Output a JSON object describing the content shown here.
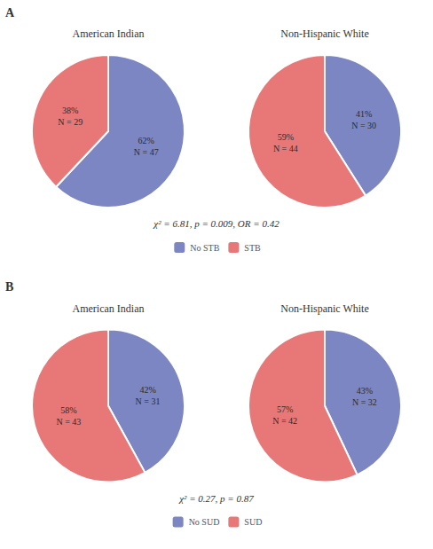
{
  "chart_data": [
    {
      "type": "pie",
      "title": "A",
      "annotations": [
        "χ² = 6.81, p = 0.009, OR = 0.42"
      ],
      "categories": [
        "No STB",
        "STB"
      ],
      "legend": "bottom",
      "data_labels": true,
      "series": [
        {
          "name": "American Indian",
          "values": [
            62,
            38
          ],
          "value_labels": [
            "62%\nN = 47",
            "38%\nN = 29"
          ],
          "colors": [
            "#7B86C2",
            "#E87878"
          ]
        },
        {
          "name": "Non-Hispanic White",
          "values": [
            41,
            59
          ],
          "value_labels": [
            "41%\nN = 30",
            "59%\nN = 44"
          ],
          "colors": [
            "#7B86C2",
            "#E87878"
          ]
        }
      ]
    },
    {
      "type": "pie",
      "title": "B",
      "annotations": [
        "χ² = 0.27, p = 0.87"
      ],
      "categories": [
        "No SUD",
        "SUD"
      ],
      "legend": "bottom",
      "data_labels": true,
      "series": [
        {
          "name": "American Indian",
          "values": [
            42,
            58
          ],
          "value_labels": [
            "42%\nN = 31",
            "58%\nN = 43"
          ],
          "colors": [
            "#7B86C2",
            "#E87878"
          ]
        },
        {
          "name": "Non-Hispanic White",
          "values": [
            43,
            57
          ],
          "value_labels": [
            "43%\nN = 32",
            "57%\nN = 42"
          ],
          "colors": [
            "#7B86C2",
            "#E87878"
          ]
        }
      ]
    }
  ]
}
